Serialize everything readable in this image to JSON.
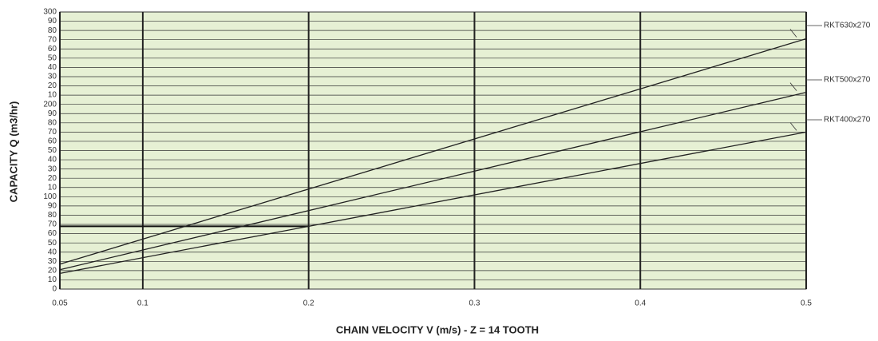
{
  "chart_data": {
    "type": "line",
    "xlabel": "CHAIN VELOCITY V (m/s) - Z = 14 TOOTH",
    "ylabel": "CAPACITY Q (m3/hr)",
    "x": [
      0.05,
      0.5
    ],
    "series": [
      {
        "name": "RKT630x270",
        "color": "#222222",
        "values": [
          27,
          271
        ]
      },
      {
        "name": "RKT500x270",
        "color": "#222222",
        "values": [
          21,
          213
        ]
      },
      {
        "name": "RKT400x270",
        "color": "#222222",
        "values": [
          17,
          170
        ]
      }
    ],
    "guide": {
      "x": [
        0.05,
        0.2
      ],
      "y": [
        68,
        68
      ]
    },
    "xlim": [
      0.05,
      0.5
    ],
    "xticks": [
      0.05,
      0.1,
      0.2,
      0.3,
      0.4,
      0.5
    ],
    "ylim": [
      0,
      300
    ],
    "yticks": [
      0,
      10,
      20,
      30,
      40,
      50,
      60,
      70,
      80,
      90,
      100,
      {
        "value": 110,
        "label": "10"
      },
      {
        "value": 120,
        "label": "20"
      },
      {
        "value": 130,
        "label": "30"
      },
      {
        "value": 140,
        "label": "40"
      },
      {
        "value": 150,
        "label": "50"
      },
      {
        "value": 160,
        "label": "60"
      },
      {
        "value": 170,
        "label": "70"
      },
      {
        "value": 180,
        "label": "80"
      },
      {
        "value": 190,
        "label": "90"
      },
      200,
      {
        "value": 210,
        "label": "10"
      },
      {
        "value": 220,
        "label": "20"
      },
      {
        "value": 230,
        "label": "30"
      },
      {
        "value": 240,
        "label": "40"
      },
      {
        "value": 250,
        "label": "50"
      },
      {
        "value": 260,
        "label": "60"
      },
      {
        "value": 270,
        "label": "70"
      },
      {
        "value": 280,
        "label": "80"
      },
      {
        "value": 290,
        "label": "90"
      },
      300
    ],
    "grid": true,
    "background": "#e6f0d4"
  }
}
